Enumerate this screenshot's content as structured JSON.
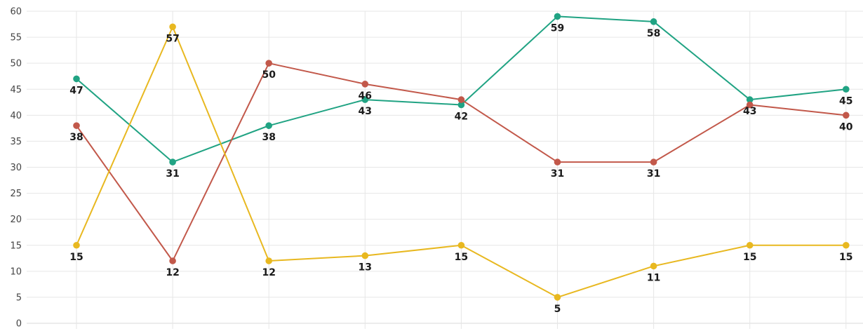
{
  "chart_data": {
    "type": "line",
    "title": "",
    "xlabel": "",
    "ylabel": "",
    "ylim": [
      0,
      60
    ],
    "yticks": [
      0,
      5,
      10,
      15,
      20,
      25,
      30,
      35,
      40,
      45,
      50,
      55,
      60
    ],
    "point_count": 9,
    "grid": true,
    "legend": "none",
    "series": [
      {
        "color": "#20a383",
        "values": [
          47,
          31,
          38,
          43,
          42,
          59,
          58,
          43,
          45
        ]
      },
      {
        "color": "#c2584a",
        "values": [
          38,
          12,
          50,
          46,
          43,
          31,
          31,
          42,
          40
        ]
      },
      {
        "color": "#e8b820",
        "values": [
          15,
          57,
          12,
          13,
          15,
          5,
          11,
          15,
          15
        ]
      }
    ],
    "data_labels": [
      {
        "series": 0,
        "index": 0,
        "text": "47"
      },
      {
        "series": 0,
        "index": 1,
        "text": "31"
      },
      {
        "series": 0,
        "index": 2,
        "text": "38"
      },
      {
        "series": 0,
        "index": 3,
        "text": "43"
      },
      {
        "series": 0,
        "index": 4,
        "text": "42"
      },
      {
        "series": 0,
        "index": 5,
        "text": "59"
      },
      {
        "series": 0,
        "index": 6,
        "text": "58"
      },
      {
        "series": 0,
        "index": 7,
        "text": "43"
      },
      {
        "series": 0,
        "index": 8,
        "text": "45"
      },
      {
        "series": 1,
        "index": 0,
        "text": "38"
      },
      {
        "series": 1,
        "index": 1,
        "text": "12"
      },
      {
        "series": 1,
        "index": 2,
        "text": "50"
      },
      {
        "series": 1,
        "index": 3,
        "text": "46"
      },
      {
        "series": 1,
        "index": 5,
        "text": "31"
      },
      {
        "series": 1,
        "index": 6,
        "text": "31"
      },
      {
        "series": 1,
        "index": 8,
        "text": "40"
      },
      {
        "series": 2,
        "index": 0,
        "text": "15"
      },
      {
        "series": 2,
        "index": 1,
        "text": "57"
      },
      {
        "series": 2,
        "index": 2,
        "text": "12"
      },
      {
        "series": 2,
        "index": 3,
        "text": "13"
      },
      {
        "series": 2,
        "index": 4,
        "text": "15"
      },
      {
        "series": 2,
        "index": 5,
        "text": "5"
      },
      {
        "series": 2,
        "index": 6,
        "text": "11"
      },
      {
        "series": 2,
        "index": 7,
        "text": "15"
      },
      {
        "series": 2,
        "index": 8,
        "text": "15"
      }
    ]
  }
}
